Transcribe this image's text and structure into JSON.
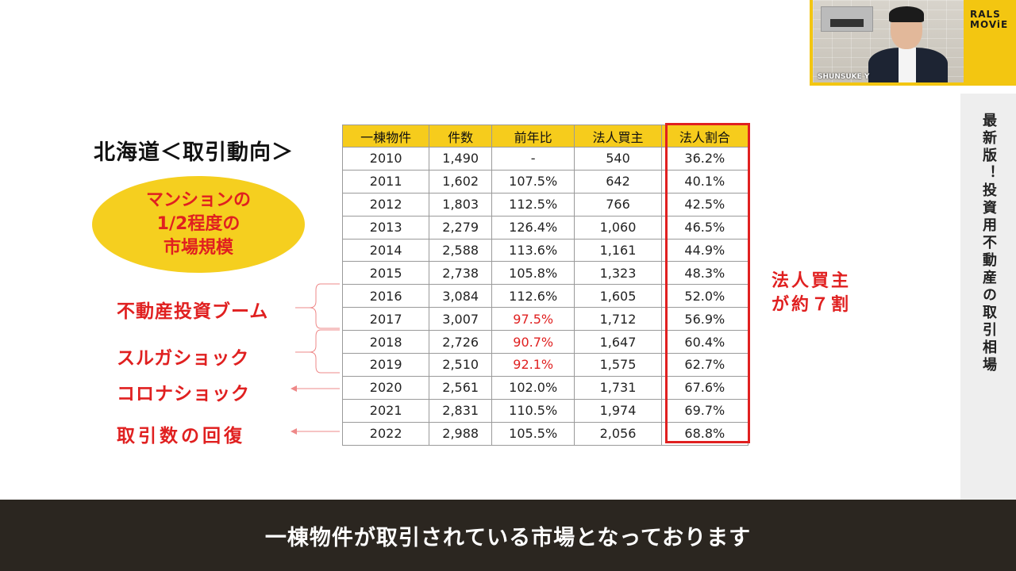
{
  "title": "北海道＜取引動向＞",
  "ellipse": {
    "lines": [
      "マンションの",
      "1/2程度の",
      "市場規模"
    ]
  },
  "annotations": {
    "boom": "不動産投資ブーム",
    "suruga": "スルガショック",
    "corona": "コロナショック",
    "recovery": "取引数の回復"
  },
  "side_note": {
    "line1": "法人買主",
    "line2": "が約７割"
  },
  "table": {
    "headers": [
      "一棟物件",
      "件数",
      "前年比",
      "法人買主",
      "法人割合"
    ],
    "rows": [
      [
        "2010",
        "1,490",
        "-",
        "540",
        "36.2%"
      ],
      [
        "2011",
        "1,602",
        "107.5%",
        "642",
        "40.1%"
      ],
      [
        "2012",
        "1,803",
        "112.5%",
        "766",
        "42.5%"
      ],
      [
        "2013",
        "2,279",
        "126.4%",
        "1,060",
        "46.5%"
      ],
      [
        "2014",
        "2,588",
        "113.6%",
        "1,161",
        "44.9%"
      ],
      [
        "2015",
        "2,738",
        "105.8%",
        "1,323",
        "48.3%"
      ],
      [
        "2016",
        "3,084",
        "112.6%",
        "1,605",
        "52.0%"
      ],
      [
        "2017",
        "3,007",
        "97.5%",
        "1,712",
        "56.9%"
      ],
      [
        "2018",
        "2,726",
        "90.7%",
        "1,647",
        "60.4%"
      ],
      [
        "2019",
        "2,510",
        "92.1%",
        "1,575",
        "62.7%"
      ],
      [
        "2020",
        "2,561",
        "102.0%",
        "1,731",
        "67.6%"
      ],
      [
        "2021",
        "2,831",
        "110.5%",
        "1,974",
        "69.7%"
      ],
      [
        "2022",
        "2,988",
        "105.5%",
        "2,056",
        "68.8%"
      ]
    ],
    "red_ratio_rows": [
      7,
      8,
      9
    ]
  },
  "sidebar": {
    "text": "最新版！投資用不動産の取引相場"
  },
  "pip": {
    "name": "SHUNSUKE Y"
  },
  "brand": {
    "line1": "RALS",
    "line2": "MOViE"
  },
  "caption": "一棟物件が取引されている市場となっております",
  "colors": {
    "accent_red": "#e02020",
    "yellow": "#f5cf1f",
    "caption_bg": "#2b2620"
  }
}
